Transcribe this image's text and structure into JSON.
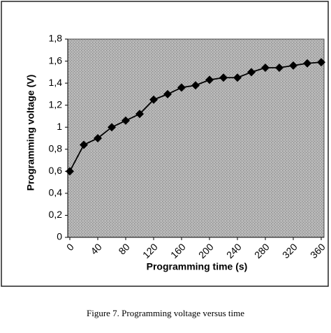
{
  "chart_data": {
    "type": "line",
    "caption": "Figure 7. Programming voltage versus time",
    "x_label": "Programming time (s)",
    "y_label": "Programming voltage (V)",
    "x": [
      0,
      20,
      40,
      60,
      80,
      100,
      120,
      140,
      160,
      180,
      200,
      220,
      240,
      260,
      280,
      300,
      320,
      340,
      360
    ],
    "values": [
      0.6,
      0.84,
      0.9,
      1.0,
      1.06,
      1.12,
      1.25,
      1.3,
      1.36,
      1.38,
      1.43,
      1.45,
      1.45,
      1.5,
      1.54,
      1.54,
      1.56,
      1.58,
      1.59
    ],
    "color": "#000000",
    "xlim": [
      0,
      360
    ],
    "xticks": [
      0,
      40,
      80,
      120,
      160,
      200,
      240,
      280,
      320,
      360
    ],
    "ylim": [
      0,
      1.8
    ],
    "yticks": [
      0,
      {
        "value": 0.2,
        "label": "0,2"
      },
      {
        "value": 0.4,
        "label": "0,4"
      },
      {
        "value": 0.6,
        "label": "0,6"
      },
      {
        "value": 0.8,
        "label": "0,8"
      },
      1,
      {
        "value": 1.2,
        "label": "1,2"
      },
      {
        "value": 1.4,
        "label": "1,4"
      },
      {
        "value": 1.6,
        "label": "1,6"
      },
      {
        "value": 1.8,
        "label": "1,8"
      }
    ],
    "grid": false
  }
}
